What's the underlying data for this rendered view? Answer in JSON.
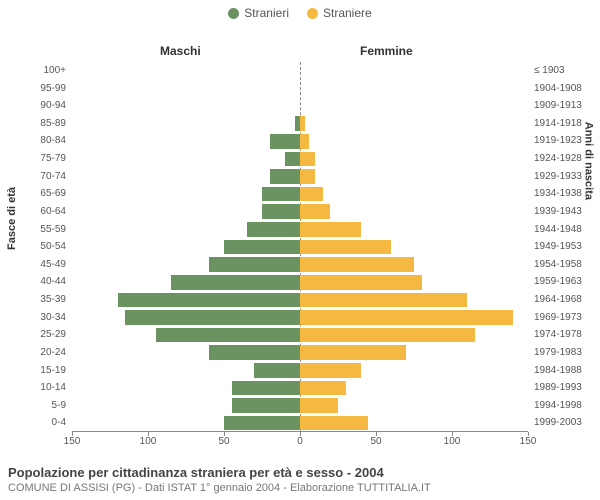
{
  "legend": {
    "male": {
      "label": "Stranieri",
      "color": "#6b9362"
    },
    "female": {
      "label": "Straniere",
      "color": "#f5b942"
    }
  },
  "headers": {
    "male": "Maschi",
    "female": "Femmine"
  },
  "axis_titles": {
    "left": "Fasce di età",
    "right": "Anni di nascita"
  },
  "x_axis": {
    "max": 150,
    "ticks": [
      150,
      100,
      50,
      0,
      50,
      100,
      150
    ]
  },
  "chart": {
    "type": "population-pyramid",
    "background_color": "#ffffff",
    "bar_colors": {
      "male": "#6b9362",
      "female": "#f5b942"
    },
    "label_fontsize": 10,
    "rows": [
      {
        "age": "100+",
        "birth": "≤ 1903",
        "m": 0,
        "f": 0
      },
      {
        "age": "95-99",
        "birth": "1904-1908",
        "m": 0,
        "f": 0
      },
      {
        "age": "90-94",
        "birth": "1909-1913",
        "m": 0,
        "f": 0
      },
      {
        "age": "85-89",
        "birth": "1914-1918",
        "m": 3,
        "f": 3
      },
      {
        "age": "80-84",
        "birth": "1919-1923",
        "m": 20,
        "f": 6
      },
      {
        "age": "75-79",
        "birth": "1924-1928",
        "m": 10,
        "f": 10
      },
      {
        "age": "70-74",
        "birth": "1929-1933",
        "m": 20,
        "f": 10
      },
      {
        "age": "65-69",
        "birth": "1934-1938",
        "m": 25,
        "f": 15
      },
      {
        "age": "60-64",
        "birth": "1939-1943",
        "m": 25,
        "f": 20
      },
      {
        "age": "55-59",
        "birth": "1944-1948",
        "m": 35,
        "f": 40
      },
      {
        "age": "50-54",
        "birth": "1949-1953",
        "m": 50,
        "f": 60
      },
      {
        "age": "45-49",
        "birth": "1954-1958",
        "m": 60,
        "f": 75
      },
      {
        "age": "40-44",
        "birth": "1959-1963",
        "m": 85,
        "f": 80
      },
      {
        "age": "35-39",
        "birth": "1964-1968",
        "m": 120,
        "f": 110
      },
      {
        "age": "30-34",
        "birth": "1969-1973",
        "m": 115,
        "f": 140
      },
      {
        "age": "25-29",
        "birth": "1974-1978",
        "m": 95,
        "f": 115
      },
      {
        "age": "20-24",
        "birth": "1979-1983",
        "m": 60,
        "f": 70
      },
      {
        "age": "15-19",
        "birth": "1984-1988",
        "m": 30,
        "f": 40
      },
      {
        "age": "10-14",
        "birth": "1989-1993",
        "m": 45,
        "f": 30
      },
      {
        "age": "5-9",
        "birth": "1994-1998",
        "m": 45,
        "f": 25
      },
      {
        "age": "0-4",
        "birth": "1999-2003",
        "m": 50,
        "f": 45
      }
    ]
  },
  "caption": {
    "title": "Popolazione per cittadinanza straniera per età e sesso - 2004",
    "subtitle": "COMUNE DI ASSISI (PG) - Dati ISTAT 1° gennaio 2004 - Elaborazione TUTTITALIA.IT"
  }
}
